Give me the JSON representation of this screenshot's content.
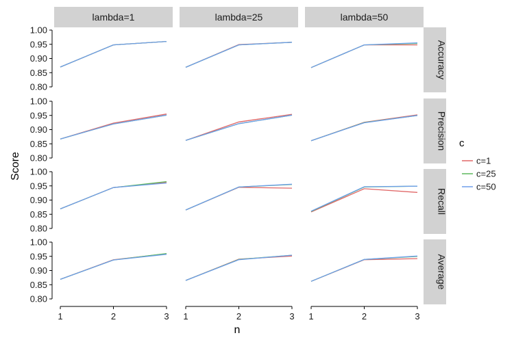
{
  "chart_data": {
    "type": "line",
    "facet_columns": [
      "lambda=1",
      "lambda=25",
      "lambda=50"
    ],
    "facet_rows": [
      "Accuracy",
      "Precision",
      "Recall",
      "Average"
    ],
    "x": [
      1,
      2,
      3
    ],
    "x_ticks": [
      "1",
      "2",
      "3"
    ],
    "y_ticks": [
      "0.80",
      "0.85",
      "0.90",
      "0.95",
      "1.00"
    ],
    "ylim": [
      0.8,
      1.0
    ],
    "xlabel": "n",
    "ylabel": "Score",
    "legend": {
      "title": "c",
      "entries": [
        "c=1",
        "c=25",
        "c=50"
      ],
      "placement": "right"
    },
    "colors": {
      "c=1": "#e06666",
      "c=25": "#5cb85c",
      "c=50": "#6d9eeb"
    },
    "panels": [
      {
        "row": "Accuracy",
        "col": "lambda=1",
        "series": [
          {
            "name": "c=1",
            "values": [
              0.87,
              0.948,
              0.96
            ]
          },
          {
            "name": "c=25",
            "values": [
              0.87,
              0.948,
              0.96
            ]
          },
          {
            "name": "c=50",
            "values": [
              0.87,
              0.948,
              0.96
            ]
          }
        ]
      },
      {
        "row": "Accuracy",
        "col": "lambda=25",
        "series": [
          {
            "name": "c=1",
            "values": [
              0.869,
              0.949,
              0.957
            ]
          },
          {
            "name": "c=25",
            "values": [
              0.869,
              0.948,
              0.957
            ]
          },
          {
            "name": "c=50",
            "values": [
              0.869,
              0.948,
              0.957
            ]
          }
        ]
      },
      {
        "row": "Accuracy",
        "col": "lambda=50",
        "series": [
          {
            "name": "c=1",
            "values": [
              0.868,
              0.948,
              0.948
            ]
          },
          {
            "name": "c=25",
            "values": [
              0.868,
              0.948,
              0.953
            ]
          },
          {
            "name": "c=50",
            "values": [
              0.868,
              0.948,
              0.955
            ]
          }
        ]
      },
      {
        "row": "Precision",
        "col": "lambda=1",
        "series": [
          {
            "name": "c=1",
            "values": [
              0.867,
              0.923,
              0.955
            ]
          },
          {
            "name": "c=25",
            "values": [
              0.867,
              0.92,
              0.951
            ]
          },
          {
            "name": "c=50",
            "values": [
              0.867,
              0.92,
              0.951
            ]
          }
        ]
      },
      {
        "row": "Precision",
        "col": "lambda=25",
        "series": [
          {
            "name": "c=1",
            "values": [
              0.862,
              0.927,
              0.954
            ]
          },
          {
            "name": "c=25",
            "values": [
              0.862,
              0.921,
              0.951
            ]
          },
          {
            "name": "c=50",
            "values": [
              0.862,
              0.921,
              0.951
            ]
          }
        ]
      },
      {
        "row": "Precision",
        "col": "lambda=50",
        "series": [
          {
            "name": "c=1",
            "values": [
              0.861,
              0.926,
              0.952
            ]
          },
          {
            "name": "c=25",
            "values": [
              0.861,
              0.925,
              0.95
            ]
          },
          {
            "name": "c=50",
            "values": [
              0.861,
              0.924,
              0.95
            ]
          }
        ]
      },
      {
        "row": "Recall",
        "col": "lambda=1",
        "series": [
          {
            "name": "c=1",
            "values": [
              0.869,
              0.944,
              0.962
            ]
          },
          {
            "name": "c=25",
            "values": [
              0.869,
              0.944,
              0.965
            ]
          },
          {
            "name": "c=50",
            "values": [
              0.869,
              0.944,
              0.96
            ]
          }
        ]
      },
      {
        "row": "Recall",
        "col": "lambda=25",
        "series": [
          {
            "name": "c=1",
            "values": [
              0.865,
              0.945,
              0.942
            ]
          },
          {
            "name": "c=25",
            "values": [
              0.865,
              0.946,
              0.955
            ]
          },
          {
            "name": "c=50",
            "values": [
              0.865,
              0.946,
              0.956
            ]
          }
        ]
      },
      {
        "row": "Recall",
        "col": "lambda=50",
        "series": [
          {
            "name": "c=1",
            "values": [
              0.858,
              0.94,
              0.927
            ]
          },
          {
            "name": "c=25",
            "values": [
              0.86,
              0.946,
              0.949
            ]
          },
          {
            "name": "c=50",
            "values": [
              0.861,
              0.947,
              0.949
            ]
          }
        ]
      },
      {
        "row": "Average",
        "col": "lambda=1",
        "series": [
          {
            "name": "c=1",
            "values": [
              0.869,
              0.938,
              0.959
            ]
          },
          {
            "name": "c=25",
            "values": [
              0.869,
              0.937,
              0.96
            ]
          },
          {
            "name": "c=50",
            "values": [
              0.869,
              0.937,
              0.957
            ]
          }
        ]
      },
      {
        "row": "Average",
        "col": "lambda=25",
        "series": [
          {
            "name": "c=1",
            "values": [
              0.865,
              0.94,
              0.951
            ]
          },
          {
            "name": "c=25",
            "values": [
              0.865,
              0.939,
              0.954
            ]
          },
          {
            "name": "c=50",
            "values": [
              0.865,
              0.938,
              0.954
            ]
          }
        ]
      },
      {
        "row": "Average",
        "col": "lambda=50",
        "series": [
          {
            "name": "c=1",
            "values": [
              0.862,
              0.938,
              0.942
            ]
          },
          {
            "name": "c=25",
            "values": [
              0.862,
              0.939,
              0.95
            ]
          },
          {
            "name": "c=50",
            "values": [
              0.862,
              0.939,
              0.951
            ]
          }
        ]
      }
    ]
  }
}
